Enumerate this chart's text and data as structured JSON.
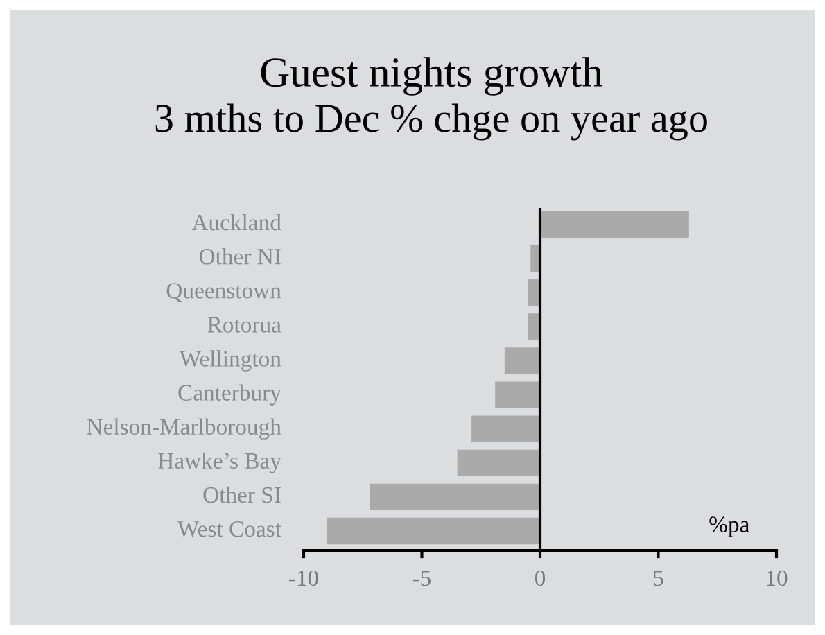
{
  "chart_data": {
    "type": "bar",
    "orientation": "horizontal",
    "title": "Guest nights growth",
    "subtitle": "3 mths to Dec % chge on year ago",
    "categories": [
      "Auckland",
      "Other NI",
      "Queenstown",
      "Rotorua",
      "Wellington",
      "Canterbury",
      "Nelson-Marlborough",
      "Hawke’s Bay",
      "Other SI",
      "West Coast"
    ],
    "values": [
      6.3,
      -0.4,
      -0.5,
      -0.5,
      -1.5,
      -1.9,
      -2.9,
      -3.5,
      -7.2,
      -9.0
    ],
    "color": "#aaaaaa",
    "xlim": [
      -10,
      10
    ],
    "xticks": [
      -10,
      -5,
      0,
      5,
      10
    ],
    "ref_lines": [
      {
        "axis": "x",
        "value": 0,
        "color": "#000000"
      }
    ],
    "annotations": [
      "%pa"
    ]
  }
}
